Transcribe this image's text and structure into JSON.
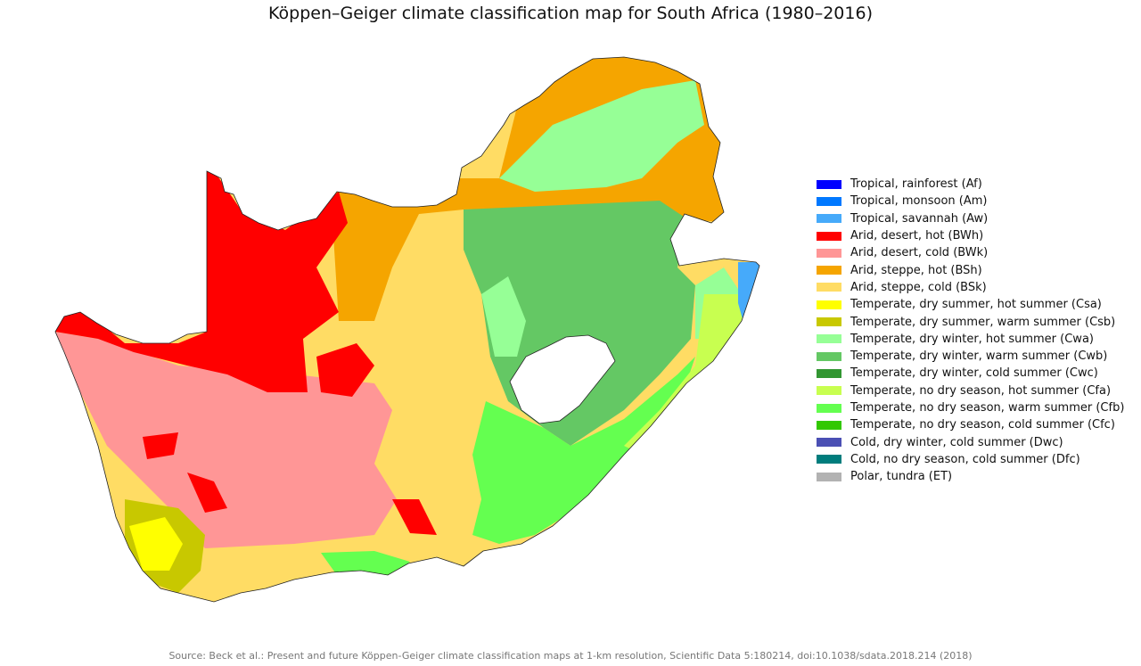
{
  "title": "Köppen–Geiger climate classification map for South Africa (1980–2016)",
  "source": "Source: Beck et al.: Present and future Köppen-Geiger climate classification maps at 1-km resolution, Scientific Data 5:180214, doi:10.1038/sdata.2018.214 (2018)",
  "legend": [
    {
      "label": "Tropical, rainforest (Af)",
      "color": "#0000ff"
    },
    {
      "label": "Tropical, monsoon (Am)",
      "color": "#0078ff"
    },
    {
      "label": "Tropical, savannah (Aw)",
      "color": "#46aafa"
    },
    {
      "label": "Arid, desert, hot (BWh)",
      "color": "#ff0000"
    },
    {
      "label": "Arid, desert, cold (BWk)",
      "color": "#ff9696"
    },
    {
      "label": "Arid, steppe, hot (BSh)",
      "color": "#f5a500"
    },
    {
      "label": "Arid, steppe, cold (BSk)",
      "color": "#ffdc64"
    },
    {
      "label": "Temperate, dry summer, hot summer (Csa)",
      "color": "#ffff00"
    },
    {
      "label": "Temperate, dry summer, warm summer (Csb)",
      "color": "#c8c800"
    },
    {
      "label": "Temperate, dry winter, hot summer (Cwa)",
      "color": "#96ff96"
    },
    {
      "label": "Temperate, dry winter, warm summer (Cwb)",
      "color": "#64c864"
    },
    {
      "label": "Temperate, dry winter, cold summer (Cwc)",
      "color": "#329632"
    },
    {
      "label": "Temperate, no dry season, hot summer (Cfa)",
      "color": "#c8ff50"
    },
    {
      "label": "Temperate, no dry season, warm summer (Cfb)",
      "color": "#64ff50"
    },
    {
      "label": "Temperate, no dry season, cold summer (Cfc)",
      "color": "#32c800"
    },
    {
      "label": "Cold, dry winter, cold summer (Dwc)",
      "color": "#4b50b4"
    },
    {
      "label": "Cold, no dry season, cold summer (Dfc)",
      "color": "#007d7d"
    },
    {
      "label": "Polar, tundra (ET)",
      "color": "#b2b2b2"
    }
  ]
}
